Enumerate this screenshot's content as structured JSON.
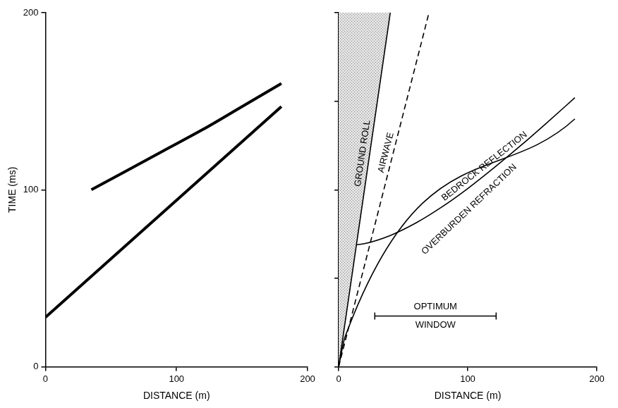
{
  "chart_data": [
    {
      "type": "line",
      "x_label": "DISTANCE (m)",
      "y_label": "TIME (ms)",
      "xlim": [
        0,
        200
      ],
      "xticks": [
        0,
        100,
        200
      ],
      "ylim": [
        0,
        200
      ],
      "yticks": [
        0,
        100,
        200
      ],
      "grid": false,
      "series": [
        {
          "color": "#000000",
          "x": [
            35,
            60,
            90,
            120,
            150,
            180
          ],
          "values": [
            100,
            110,
            122,
            134,
            147,
            160
          ]
        },
        {
          "color": "#000000",
          "x": [
            0,
            180
          ],
          "values": [
            28,
            147
          ]
        }
      ]
    },
    {
      "type": "line",
      "x_label": "DISTANCE (m)",
      "xlim": [
        0,
        200
      ],
      "xticks": [
        0,
        100,
        200
      ],
      "ylim": [
        0,
        200
      ],
      "yticks": [
        0,
        50,
        100,
        150,
        200
      ],
      "tick_labels": "x",
      "grid": false,
      "series": [
        {
          "name": "GROUND ROLL",
          "type": "area",
          "color": "#000000",
          "x": [
            0,
            40
          ],
          "values": [
            0,
            200
          ]
        },
        {
          "name": "AIRWAVE",
          "line_style": "dashed",
          "color": "#000000",
          "x": [
            0,
            70
          ],
          "values": [
            0,
            200
          ]
        },
        {
          "name": "BEDROCK REFLECTION",
          "color": "#000000",
          "x": [
            0,
            20,
            40,
            60,
            80,
            100,
            120,
            140,
            160,
            183
          ],
          "values": [
            68,
            69.6,
            74.2,
            81.3,
            90.3,
            100.7,
            112.2,
            124.3,
            137,
            152
          ]
        },
        {
          "name": "OVERBURDEN REFRACTION",
          "color": "#000000",
          "x": [
            0,
            5,
            183
          ],
          "values": [
            0,
            17,
            140
          ]
        }
      ],
      "annotations": [
        {
          "text": "OPTIMUM WINDOW",
          "x": [
            28,
            122
          ]
        }
      ]
    }
  ]
}
